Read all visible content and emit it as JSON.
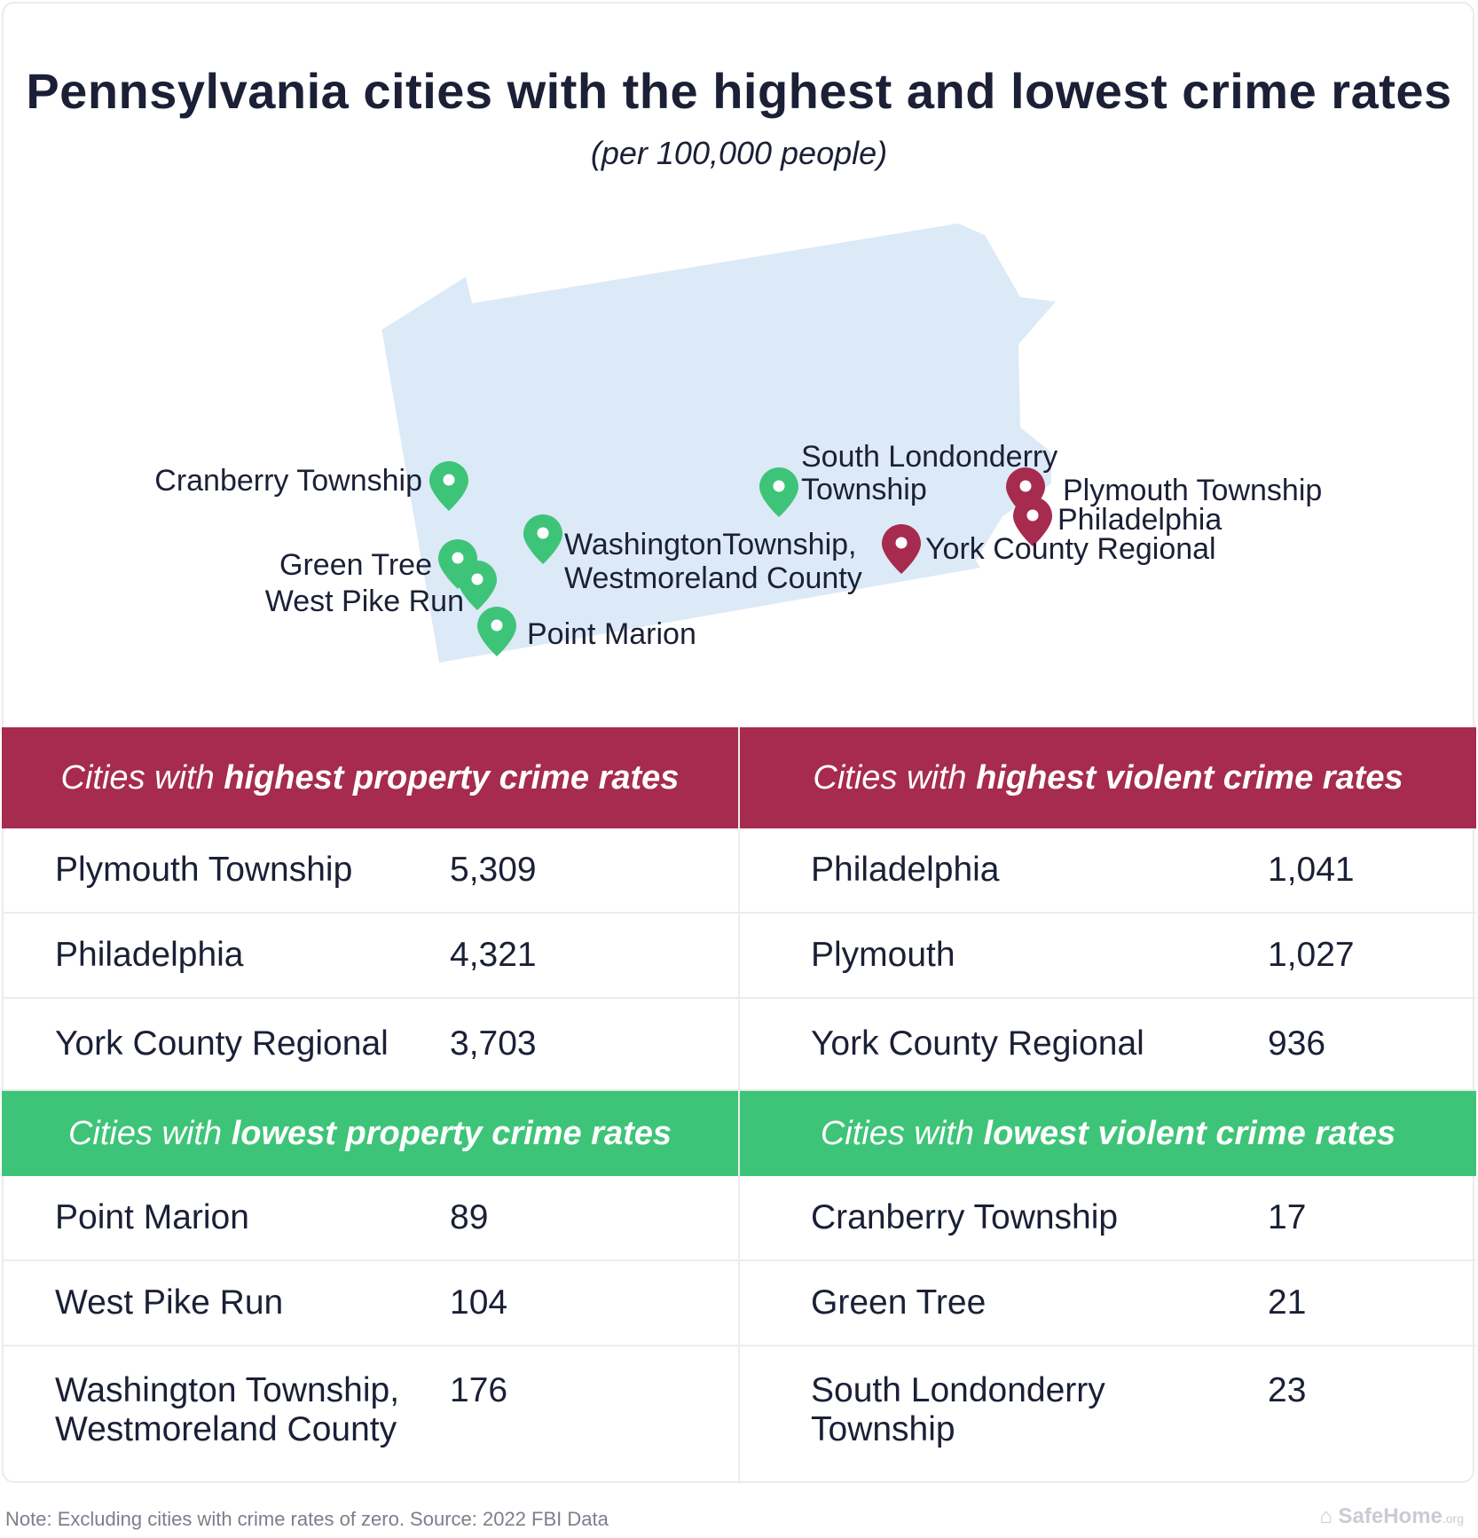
{
  "title": "Pennsylvania cities with the highest and lowest crime rates",
  "subtitle": "(per 100,000 people)",
  "colors": {
    "high": "#a62b4f",
    "low": "#3ec478",
    "state": "#dce9f7",
    "text": "#1b2036"
  },
  "map": {
    "labels": {
      "cranberry": "Cranberry Township",
      "green_tree": "Green Tree",
      "west_pike": "West Pike Run",
      "point_marion": "Point Marion",
      "washington_1": "WashingtonTownship,",
      "washington_2": "Westmoreland County",
      "south_lon_1": "South Londonderry",
      "south_lon_2": "Township",
      "plymouth": "Plymouth Township",
      "philadelphia": "Philadelphia",
      "york": "York County Regional"
    },
    "pin_icon": "map-pin-icon"
  },
  "tables": {
    "high_property": {
      "head_pre": "Cities with ",
      "head_bold": "highest property crime rates",
      "rows": [
        {
          "name": "Plymouth Township",
          "value": "5,309"
        },
        {
          "name": "Philadelphia",
          "value": "4,321"
        },
        {
          "name": "York County Regional",
          "value": "3,703"
        }
      ]
    },
    "high_violent": {
      "head_pre": "Cities with ",
      "head_bold": "highest violent crime rates",
      "rows": [
        {
          "name": "Philadelphia",
          "value": "1,041"
        },
        {
          "name": "Plymouth",
          "value": "1,027"
        },
        {
          "name": "York County Regional",
          "value": "936"
        }
      ]
    },
    "low_property": {
      "head_pre": "Cities with ",
      "head_bold": "lowest property crime rates",
      "rows": [
        {
          "name": "Point Marion",
          "value": "89"
        },
        {
          "name": "West Pike Run",
          "value": "104"
        },
        {
          "name_1": "Washington Township,",
          "name_2": "Westmoreland County",
          "value": "176"
        }
      ]
    },
    "low_violent": {
      "head_pre": "Cities with ",
      "head_bold": "lowest violent crime rates",
      "rows": [
        {
          "name": "Cranberry Township",
          "value": "17"
        },
        {
          "name": "Green Tree",
          "value": "21"
        },
        {
          "name_1": "South Londonderry",
          "name_2": "Township",
          "value": "23"
        }
      ]
    }
  },
  "footer": {
    "note": "Note: Excluding cities with crime rates of zero. Source: 2022 FBI Data",
    "brand": "SafeHome",
    "brand_suffix": ".org"
  }
}
